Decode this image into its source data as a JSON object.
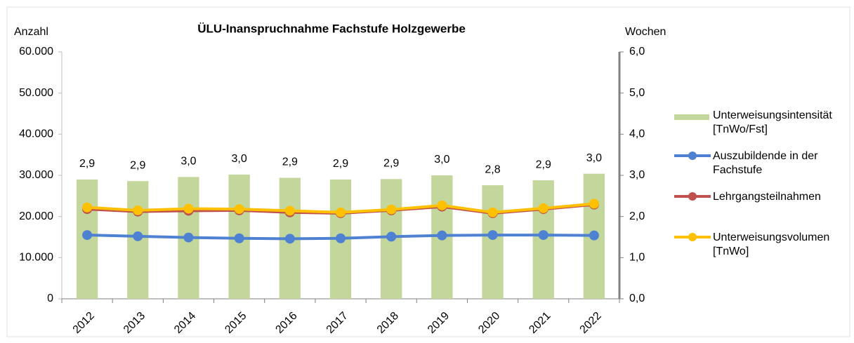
{
  "chart_data": {
    "type": "bar-line",
    "title": "ÜLU-Inanspruchnahme Fachstufe Holzgewerbe",
    "y_label": "Anzahl",
    "y2_label": "Wochen",
    "categories": [
      "2012",
      "2013",
      "2014",
      "2015",
      "2016",
      "2017",
      "2018",
      "2019",
      "2020",
      "2021",
      "2022"
    ],
    "ylim": [
      0,
      60000
    ],
    "yticks": [
      {
        "value": 0,
        "label": "0"
      },
      {
        "value": 10000,
        "label": "10.000"
      },
      {
        "value": 20000,
        "label": "20.000"
      },
      {
        "value": 30000,
        "label": "30.000"
      },
      {
        "value": 40000,
        "label": "40.000"
      },
      {
        "value": 50000,
        "label": "50.000"
      },
      {
        "value": 60000,
        "label": "60.000"
      }
    ],
    "y2lim": [
      0,
      6
    ],
    "y2ticks": [
      {
        "value": 0,
        "label": "0,0"
      },
      {
        "value": 1,
        "label": "1,0"
      },
      {
        "value": 2,
        "label": "2,0"
      },
      {
        "value": 3,
        "label": "3,0"
      },
      {
        "value": 4,
        "label": "4,0"
      },
      {
        "value": 5,
        "label": "5,0"
      },
      {
        "value": 6,
        "label": "6,0"
      }
    ],
    "series": [
      {
        "name": "Unterweisungsintensität [TnWo/Fst]",
        "type": "bar",
        "axis": "y2",
        "color": "#c3d69b",
        "values": [
          2.9,
          2.86,
          2.96,
          3.02,
          2.94,
          2.9,
          2.91,
          3.0,
          2.76,
          2.88,
          3.04
        ],
        "value_labels": [
          "2,9",
          "2,9",
          "3,0",
          "3,0",
          "2,9",
          "2,9",
          "2,9",
          "3,0",
          "2,8",
          "2,9",
          "3,0"
        ]
      },
      {
        "name": "Auszubildende in der Fachstufe",
        "type": "line",
        "color": "#4f81d3",
        "values": [
          15500,
          15200,
          14900,
          14700,
          14600,
          14700,
          15100,
          15400,
          15500,
          15500,
          15400
        ]
      },
      {
        "name": "Lehrgangsteilnahmen",
        "type": "line",
        "color": "#c0504d",
        "values": [
          21800,
          21200,
          21400,
          21500,
          21000,
          20800,
          21500,
          22400,
          20800,
          21800,
          22900
        ]
      },
      {
        "name": "Unterweisungsvolumen [TnWo]",
        "type": "line",
        "color": "#ffc000",
        "values": [
          22200,
          21500,
          21900,
          21800,
          21400,
          21000,
          21700,
          22700,
          21000,
          22000,
          23100
        ]
      }
    ]
  }
}
